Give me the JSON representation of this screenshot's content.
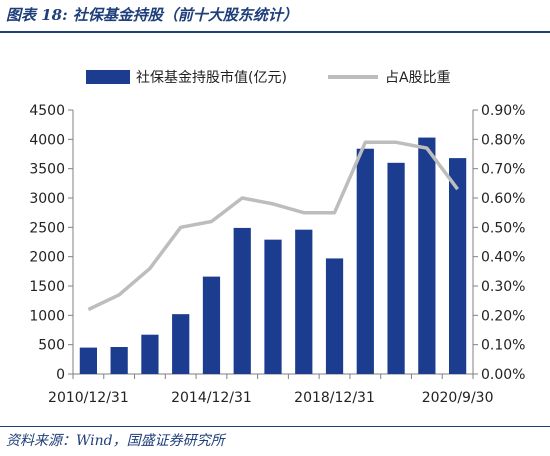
{
  "header": {
    "title": "图表 18:  社保基金持股（前十大股东统计）"
  },
  "footer": {
    "source": "资料来源：Wind，国盛证券研究所"
  },
  "colors": {
    "bar": "#1c3d8f",
    "line": "#bdbdbd",
    "title": "#1f3f7a",
    "axis": "#808080",
    "text": "#222222"
  },
  "chart_data": {
    "type": "bar",
    "title": "",
    "x_tick_labels": [
      "2010/12/31",
      "2014/12/31",
      "2018/12/31",
      "2020/9/30"
    ],
    "x_tick_label_indices": [
      0,
      4,
      8,
      12
    ],
    "series": [
      {
        "name": "社保基金持股市值(亿元)",
        "type": "bar",
        "axis": "left",
        "values": [
          450,
          460,
          670,
          1020,
          1660,
          2490,
          2290,
          2460,
          1970,
          3840,
          3600,
          4030,
          3680
        ]
      },
      {
        "name": "占A股比重",
        "type": "line",
        "axis": "right",
        "values": [
          0.0022,
          0.0027,
          0.0036,
          0.005,
          0.0052,
          0.006,
          0.0058,
          0.0055,
          0.0055,
          0.0079,
          0.0079,
          0.0077,
          0.0063
        ]
      }
    ],
    "y_left": {
      "min": 0,
      "max": 4500,
      "step": 500,
      "ticks": [
        "0",
        "500",
        "1000",
        "1500",
        "2000",
        "2500",
        "3000",
        "3500",
        "4000",
        "4500"
      ]
    },
    "y_right": {
      "min": 0,
      "max": 0.009,
      "step": 0.001,
      "ticks": [
        "0.00%",
        "0.10%",
        "0.20%",
        "0.30%",
        "0.40%",
        "0.50%",
        "0.60%",
        "0.70%",
        "0.80%",
        "0.90%"
      ]
    },
    "grid": false,
    "legend_position": "top"
  }
}
